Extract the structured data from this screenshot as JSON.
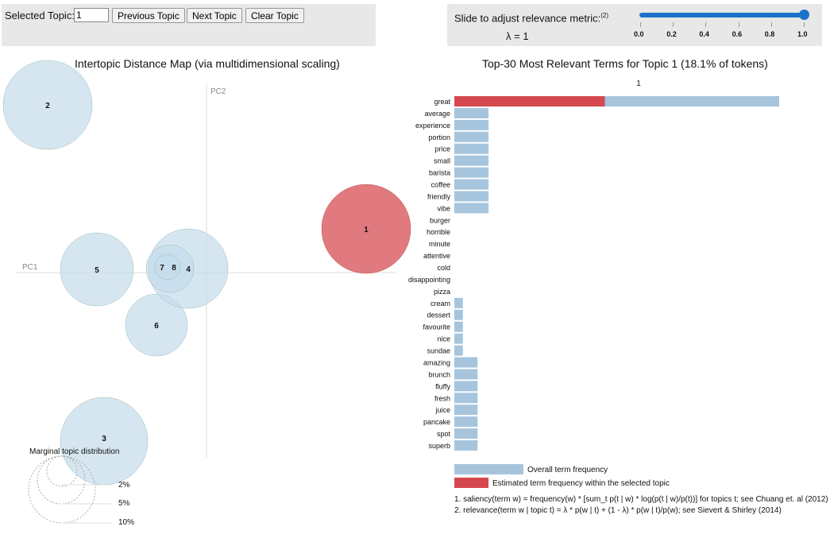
{
  "controls": {
    "selected_topic_label": "Selected Topic:",
    "selected_topic_value": "1",
    "previous": "Previous Topic",
    "next": "Next Topic",
    "clear": "Clear Topic",
    "slider_label": "Slide to adjust relevance metric:",
    "slider_note": "(2)",
    "lambda_text": "λ = 1",
    "lambda_value": 1.0,
    "slider_ticks": [
      "0.0",
      "0.2",
      "0.4",
      "0.6",
      "0.8",
      "1.0"
    ]
  },
  "map": {
    "title": "Intertopic Distance Map (via multidimensional scaling)",
    "pc1": "PC1",
    "pc2": "PC2",
    "topics": [
      {
        "id": "2"
      },
      {
        "id": "5"
      },
      {
        "id": "3"
      },
      {
        "id": "6"
      },
      {
        "id": "4"
      },
      {
        "id": "7"
      },
      {
        "id": "8"
      },
      {
        "id": "1",
        "selected": true
      }
    ],
    "marginal": {
      "title": "Marginal topic distribution",
      "levels": [
        "2%",
        "5%",
        "10%"
      ]
    }
  },
  "bars": {
    "title": "Top-30 Most Relevant Terms for Topic 1 (18.1% of tokens)",
    "axis_tick": "1",
    "terms": [
      {
        "term": "great",
        "overall": 95,
        "topic": 44
      },
      {
        "term": "average",
        "overall": 10,
        "topic": 0
      },
      {
        "term": "experience",
        "overall": 10,
        "topic": 0
      },
      {
        "term": "portion",
        "overall": 10,
        "topic": 0
      },
      {
        "term": "price",
        "overall": 10,
        "topic": 0
      },
      {
        "term": "small",
        "overall": 10,
        "topic": 0
      },
      {
        "term": "barista",
        "overall": 10,
        "topic": 0
      },
      {
        "term": "coffee",
        "overall": 10,
        "topic": 0
      },
      {
        "term": "friendly",
        "overall": 10,
        "topic": 0
      },
      {
        "term": "vibe",
        "overall": 10,
        "topic": 0
      },
      {
        "term": "burger",
        "overall": 0,
        "topic": 0
      },
      {
        "term": "horrible",
        "overall": 0,
        "topic": 0
      },
      {
        "term": "minute",
        "overall": 0,
        "topic": 0
      },
      {
        "term": "attentive",
        "overall": 0,
        "topic": 0
      },
      {
        "term": "cold",
        "overall": 0,
        "topic": 0
      },
      {
        "term": "disappointing",
        "overall": 0,
        "topic": 0
      },
      {
        "term": "pizza",
        "overall": 0,
        "topic": 0
      },
      {
        "term": "cream",
        "overall": 2.5,
        "topic": 0
      },
      {
        "term": "dessert",
        "overall": 2.5,
        "topic": 0
      },
      {
        "term": "favourite",
        "overall": 2.5,
        "topic": 0
      },
      {
        "term": "nice",
        "overall": 2.5,
        "topic": 0
      },
      {
        "term": "sundae",
        "overall": 2.5,
        "topic": 0
      },
      {
        "term": "amazing",
        "overall": 6.8,
        "topic": 0
      },
      {
        "term": "brunch",
        "overall": 6.8,
        "topic": 0
      },
      {
        "term": "fluffy",
        "overall": 6.8,
        "topic": 0
      },
      {
        "term": "fresh",
        "overall": 6.8,
        "topic": 0
      },
      {
        "term": "juice",
        "overall": 6.8,
        "topic": 0
      },
      {
        "term": "pancake",
        "overall": 6.8,
        "topic": 0
      },
      {
        "term": "spot",
        "overall": 6.8,
        "topic": 0
      },
      {
        "term": "superb",
        "overall": 6.8,
        "topic": 0
      }
    ],
    "legend_overall": "Overall term frequency",
    "legend_topic": "Estimated term frequency within the selected topic",
    "footnote1": "1. saliency(term w) = frequency(w) * [sum_t p(t | w) * log(p(t | w)/p(t))] for topics t; see Chuang et. al (2012)",
    "footnote2": "2. relevance(term w | topic t) = λ * p(w | t) + (1 - λ) * p(w | t)/p(w); see Sievert & Shirley (2014)"
  },
  "colors": {
    "overall": "#a6c5dd",
    "topic": "#d4484e",
    "circle": "#c5dbeb",
    "selected": "#e07a7e"
  }
}
